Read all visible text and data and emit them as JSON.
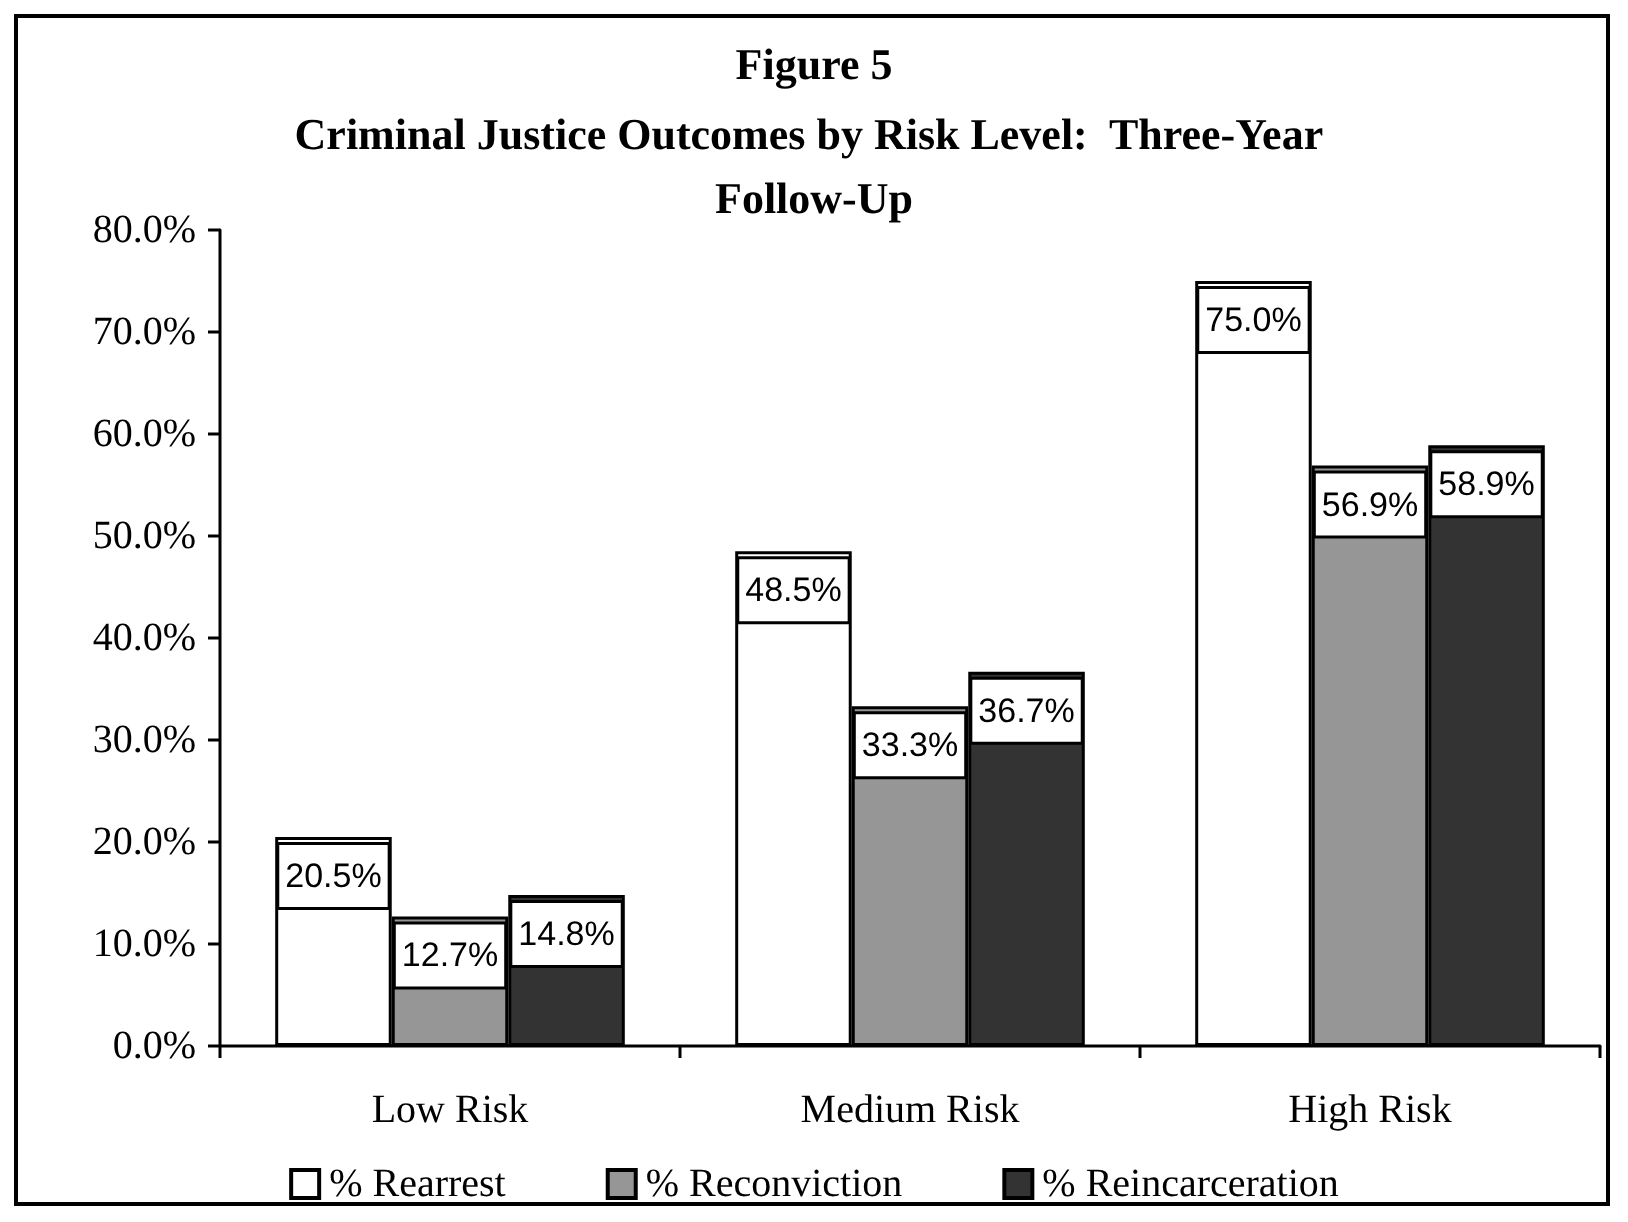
{
  "chart_data": {
    "type": "bar",
    "title": "Figure 5",
    "subtitle": "Criminal Justice Outcomes by Risk Level:  Three-Year Follow-Up",
    "categories": [
      "Low Risk",
      "Medium Risk",
      "High Risk"
    ],
    "series": [
      {
        "name": "% Rearrest",
        "color": "#ffffff",
        "values": [
          20.5,
          48.5,
          75.0
        ],
        "value_labels": [
          "20.5%",
          "48.5%",
          "75.0%"
        ]
      },
      {
        "name": "% Reconviction",
        "color": "#969696",
        "values": [
          12.7,
          33.3,
          56.9
        ],
        "value_labels": [
          "12.7%",
          "33.3%",
          "56.9%"
        ]
      },
      {
        "name": "% Reincarceration",
        "color": "#333333",
        "values": [
          14.8,
          36.7,
          58.9
        ],
        "value_labels": [
          "14.8%",
          "36.7%",
          "58.9%"
        ]
      }
    ],
    "ylim": [
      0,
      80
    ],
    "yticks": [
      {
        "value": 0,
        "label": "0.0%"
      },
      {
        "value": 10,
        "label": "10.0%"
      },
      {
        "value": 20,
        "label": "20.0%"
      },
      {
        "value": 30,
        "label": "30.0%"
      },
      {
        "value": 40,
        "label": "40.0%"
      },
      {
        "value": 50,
        "label": "50.0%"
      },
      {
        "value": 60,
        "label": "60.0%"
      },
      {
        "value": 70,
        "label": "70.0%"
      },
      {
        "value": 80,
        "label": "80.0%"
      }
    ],
    "grid": false,
    "legend": "bottom"
  }
}
